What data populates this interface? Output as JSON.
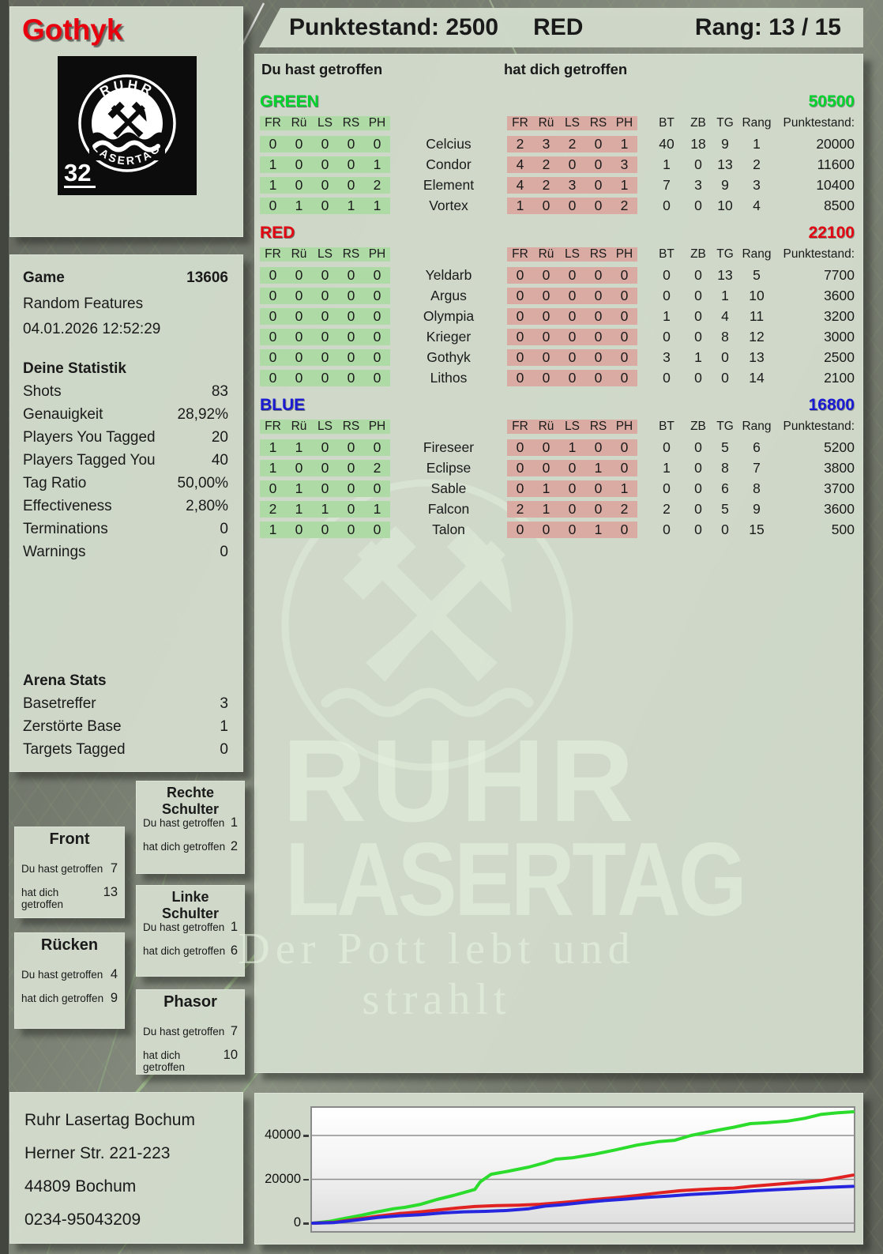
{
  "header": {
    "punktestand": "Punktestand: 2500",
    "team": "RED",
    "rang": "Rang: 13 / 15"
  },
  "player_card": {
    "name": "Gothyk",
    "logo_top": "RUHR",
    "logo_bottom": "LASERTAG",
    "logo_number": "32"
  },
  "table": {
    "you_hit_label": "Du hast getroffen",
    "hit_you_label": "hat dich getroffen",
    "grid_cols": [
      "FR",
      "Rü",
      "LS",
      "RS",
      "PH"
    ],
    "stat_cols": [
      "BT",
      "ZB",
      "TG",
      "Rang",
      "Punktestand:"
    ]
  },
  "teams": [
    {
      "name": "GREEN",
      "color": "#00d22e",
      "score": "50500",
      "players": [
        {
          "name": "Celcius",
          "you_hit": [
            "0",
            "0",
            "0",
            "0",
            "0"
          ],
          "hit_you": [
            "2",
            "3",
            "2",
            "0",
            "1"
          ],
          "stats": [
            "40",
            "18",
            "9",
            "1"
          ],
          "punktestand": "20000"
        },
        {
          "name": "Condor",
          "you_hit": [
            "1",
            "0",
            "0",
            "0",
            "1"
          ],
          "hit_you": [
            "4",
            "2",
            "0",
            "0",
            "3"
          ],
          "stats": [
            "1",
            "0",
            "13",
            "2"
          ],
          "punktestand": "11600"
        },
        {
          "name": "Element",
          "you_hit": [
            "1",
            "0",
            "0",
            "0",
            "2"
          ],
          "hit_you": [
            "4",
            "2",
            "3",
            "0",
            "1"
          ],
          "stats": [
            "7",
            "3",
            "9",
            "3"
          ],
          "punktestand": "10400"
        },
        {
          "name": "Vortex",
          "you_hit": [
            "0",
            "1",
            "0",
            "1",
            "1"
          ],
          "hit_you": [
            "1",
            "0",
            "0",
            "0",
            "2"
          ],
          "stats": [
            "0",
            "0",
            "10",
            "4"
          ],
          "punktestand": "8500"
        }
      ]
    },
    {
      "name": "RED",
      "color": "#e20613",
      "score": "22100",
      "players": [
        {
          "name": "Yeldarb",
          "you_hit": [
            "0",
            "0",
            "0",
            "0",
            "0"
          ],
          "hit_you": [
            "0",
            "0",
            "0",
            "0",
            "0"
          ],
          "stats": [
            "0",
            "0",
            "13",
            "5"
          ],
          "punktestand": "7700"
        },
        {
          "name": "Argus",
          "you_hit": [
            "0",
            "0",
            "0",
            "0",
            "0"
          ],
          "hit_you": [
            "0",
            "0",
            "0",
            "0",
            "0"
          ],
          "stats": [
            "0",
            "0",
            "1",
            "10"
          ],
          "punktestand": "3600"
        },
        {
          "name": "Olympia",
          "you_hit": [
            "0",
            "0",
            "0",
            "0",
            "0"
          ],
          "hit_you": [
            "0",
            "0",
            "0",
            "0",
            "0"
          ],
          "stats": [
            "1",
            "0",
            "4",
            "11"
          ],
          "punktestand": "3200"
        },
        {
          "name": "Krieger",
          "you_hit": [
            "0",
            "0",
            "0",
            "0",
            "0"
          ],
          "hit_you": [
            "0",
            "0",
            "0",
            "0",
            "0"
          ],
          "stats": [
            "0",
            "0",
            "8",
            "12"
          ],
          "punktestand": "3000"
        },
        {
          "name": "Gothyk",
          "you_hit": [
            "0",
            "0",
            "0",
            "0",
            "0"
          ],
          "hit_you": [
            "0",
            "0",
            "0",
            "0",
            "0"
          ],
          "stats": [
            "3",
            "1",
            "0",
            "13"
          ],
          "punktestand": "2500"
        },
        {
          "name": "Lithos",
          "you_hit": [
            "0",
            "0",
            "0",
            "0",
            "0"
          ],
          "hit_you": [
            "0",
            "0",
            "0",
            "0",
            "0"
          ],
          "stats": [
            "0",
            "0",
            "0",
            "14"
          ],
          "punktestand": "2100"
        }
      ]
    },
    {
      "name": "BLUE",
      "color": "#1a1ad2",
      "score": "16800",
      "players": [
        {
          "name": "Fireseer",
          "you_hit": [
            "1",
            "1",
            "0",
            "0",
            "0"
          ],
          "hit_you": [
            "0",
            "0",
            "1",
            "0",
            "0"
          ],
          "stats": [
            "0",
            "0",
            "5",
            "6"
          ],
          "punktestand": "5200"
        },
        {
          "name": "Eclipse",
          "you_hit": [
            "1",
            "0",
            "0",
            "0",
            "2"
          ],
          "hit_you": [
            "0",
            "0",
            "0",
            "1",
            "0"
          ],
          "stats": [
            "1",
            "0",
            "8",
            "7"
          ],
          "punktestand": "3800"
        },
        {
          "name": "Sable",
          "you_hit": [
            "0",
            "1",
            "0",
            "0",
            "0"
          ],
          "hit_you": [
            "0",
            "1",
            "0",
            "0",
            "1"
          ],
          "stats": [
            "0",
            "0",
            "6",
            "8"
          ],
          "punktestand": "3700"
        },
        {
          "name": "Falcon",
          "you_hit": [
            "2",
            "1",
            "1",
            "0",
            "1"
          ],
          "hit_you": [
            "2",
            "1",
            "0",
            "0",
            "2"
          ],
          "stats": [
            "2",
            "0",
            "5",
            "9"
          ],
          "punktestand": "3600"
        },
        {
          "name": "Talon",
          "you_hit": [
            "1",
            "0",
            "0",
            "0",
            "0"
          ],
          "hit_you": [
            "0",
            "0",
            "0",
            "1",
            "0"
          ],
          "stats": [
            "0",
            "0",
            "0",
            "15"
          ],
          "punktestand": "500"
        }
      ]
    }
  ],
  "sidebar": {
    "game_label": "Game",
    "game_value": "13606",
    "game_mode": "Random Features",
    "game_datetime": "04.01.2026 12:52:29",
    "stats_title": "Deine Statistik",
    "stats": [
      [
        "Shots",
        "83"
      ],
      [
        "Genauigkeit",
        "28,92%"
      ],
      [
        "Players You Tagged",
        "20"
      ],
      [
        "Players Tagged You",
        "40"
      ],
      [
        "Tag Ratio",
        "50,00%"
      ],
      [
        "Effectiveness",
        "2,80%"
      ],
      [
        "Terminations",
        "0"
      ],
      [
        "Warnings",
        "0"
      ]
    ],
    "arena_title": "Arena Stats",
    "arena": [
      [
        "Basetreffer",
        "3"
      ],
      [
        "Zerstörte Base",
        "1"
      ],
      [
        "Targets Tagged",
        "0"
      ]
    ]
  },
  "body_parts": [
    {
      "title": "Front",
      "you_hit": "7",
      "hit_you": "13"
    },
    {
      "title": "Rücken",
      "you_hit": "4",
      "hit_you": "9"
    },
    {
      "title": "Rechte Schulter",
      "you_hit": "1",
      "hit_you": "2"
    },
    {
      "title": "Linke Schulter",
      "you_hit": "1",
      "hit_you": "6"
    },
    {
      "title": "Phasor",
      "you_hit": "7",
      "hit_you": "10"
    }
  ],
  "address": [
    "Ruhr Lasertag Bochum",
    "Herner Str. 221-223",
    "44809 Bochum",
    "0234-95043209"
  ],
  "watermark": {
    "line1": "RUHR",
    "line2": "LASERTAG",
    "slogan": "Der Pott lebt und strahlt"
  },
  "chart_data": {
    "type": "line",
    "xlabel": "",
    "ylabel": "",
    "ylim": [
      0,
      53000
    ],
    "yticks": [
      0,
      20000,
      40000
    ],
    "grid": true,
    "legend": false,
    "series": [
      {
        "name": "GREEN",
        "color": "#2cdc2c",
        "points": [
          [
            0,
            0
          ],
          [
            3,
            800
          ],
          [
            6,
            2200
          ],
          [
            9,
            3600
          ],
          [
            12,
            5200
          ],
          [
            15,
            6600
          ],
          [
            17,
            7200
          ],
          [
            20,
            8600
          ],
          [
            23,
            10800
          ],
          [
            26,
            12600
          ],
          [
            28,
            14000
          ],
          [
            30,
            15400
          ],
          [
            31,
            18800
          ],
          [
            33,
            22300
          ],
          [
            36,
            23600
          ],
          [
            40,
            25600
          ],
          [
            43,
            27600
          ],
          [
            45,
            29200
          ],
          [
            48,
            29800
          ],
          [
            52,
            31400
          ],
          [
            56,
            33400
          ],
          [
            60,
            35600
          ],
          [
            64,
            37200
          ],
          [
            67,
            37800
          ],
          [
            70,
            40000
          ],
          [
            74,
            42000
          ],
          [
            78,
            43800
          ],
          [
            81,
            45400
          ],
          [
            84,
            45800
          ],
          [
            88,
            46600
          ],
          [
            91,
            47800
          ],
          [
            94,
            49600
          ],
          [
            97,
            50300
          ],
          [
            100,
            50800
          ]
        ]
      },
      {
        "name": "RED",
        "color": "#e02222",
        "points": [
          [
            0,
            0
          ],
          [
            4,
            400
          ],
          [
            8,
            1800
          ],
          [
            12,
            3200
          ],
          [
            16,
            4400
          ],
          [
            20,
            5200
          ],
          [
            24,
            6200
          ],
          [
            27,
            7000
          ],
          [
            30,
            7600
          ],
          [
            34,
            8000
          ],
          [
            38,
            8200
          ],
          [
            42,
            8600
          ],
          [
            45,
            9200
          ],
          [
            48,
            9800
          ],
          [
            52,
            10800
          ],
          [
            56,
            11600
          ],
          [
            60,
            12600
          ],
          [
            64,
            13800
          ],
          [
            68,
            14800
          ],
          [
            72,
            15400
          ],
          [
            75,
            15800
          ],
          [
            78,
            16000
          ],
          [
            81,
            16800
          ],
          [
            84,
            17400
          ],
          [
            88,
            18200
          ],
          [
            91,
            18800
          ],
          [
            94,
            19400
          ],
          [
            97,
            20600
          ],
          [
            100,
            21900
          ]
        ]
      },
      {
        "name": "BLUE",
        "color": "#2626de",
        "points": [
          [
            0,
            0
          ],
          [
            4,
            300
          ],
          [
            8,
            1400
          ],
          [
            12,
            2600
          ],
          [
            16,
            3400
          ],
          [
            20,
            3900
          ],
          [
            24,
            4700
          ],
          [
            28,
            5200
          ],
          [
            32,
            5400
          ],
          [
            36,
            5800
          ],
          [
            40,
            6600
          ],
          [
            43,
            7800
          ],
          [
            46,
            8400
          ],
          [
            50,
            9400
          ],
          [
            54,
            10300
          ],
          [
            58,
            11000
          ],
          [
            62,
            11800
          ],
          [
            66,
            12400
          ],
          [
            70,
            13100
          ],
          [
            74,
            13600
          ],
          [
            78,
            14200
          ],
          [
            82,
            14800
          ],
          [
            86,
            15300
          ],
          [
            90,
            15800
          ],
          [
            94,
            16200
          ],
          [
            100,
            16800
          ]
        ]
      }
    ]
  }
}
